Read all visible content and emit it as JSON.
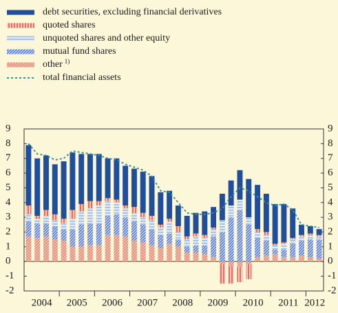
{
  "chart_data": {
    "type": "stacked_bar_line",
    "x_groups": [
      "2004",
      "2005",
      "2006",
      "2007",
      "2008",
      "2009",
      "2010",
      "2011",
      "2012"
    ],
    "categories": [
      null,
      null,
      null,
      null,
      null,
      null,
      null,
      null,
      null,
      null,
      null,
      null,
      null,
      null,
      null,
      null,
      null,
      null,
      null,
      null,
      null,
      null,
      null,
      null,
      null,
      null,
      null,
      null,
      null,
      null,
      null,
      null,
      null,
      null
    ],
    "series": [
      {
        "name": "debt securities, excluding financial derivatives",
        "color": "#1f4e9c",
        "pattern": "solid",
        "values": [
          4.1,
          3.9,
          3.7,
          3.4,
          3.9,
          3.9,
          3.4,
          3.2,
          3.2,
          2.7,
          2.8,
          2.7,
          2.6,
          2.8,
          2.7,
          2.2,
          1.9,
          1.4,
          1.4,
          1.4,
          1.6,
          1.4,
          1.8,
          1.7,
          2.0,
          2.6,
          3.0,
          2.6,
          2.7,
          2.6,
          2.0,
          0.7,
          0.5,
          0.4
        ]
      },
      {
        "name": "quoted shares",
        "color": "#d9453a",
        "pattern": "vertical",
        "values": [
          0.6,
          0.2,
          0.4,
          0.4,
          0.3,
          0.6,
          0.5,
          0.5,
          0.3,
          0.2,
          0.2,
          0.2,
          0.4,
          0.3,
          0.3,
          0.2,
          0.2,
          0.4,
          0.2,
          0.2,
          0.2,
          0.1,
          -1.3,
          -1.2,
          -1.0,
          -1.0,
          0.2,
          0.2,
          0.1,
          0.1,
          0.1,
          0.1,
          0.1,
          0.1
        ]
      },
      {
        "name": "unquoted shares and other equity",
        "color": "#8fb0de",
        "pattern": "horizontal",
        "values": [
          0.5,
          0.3,
          0.5,
          0.4,
          0.4,
          0.7,
          0.9,
          1.0,
          1.2,
          1.0,
          0.8,
          0.6,
          0.6,
          0.5,
          0.6,
          0.5,
          0.8,
          0.5,
          0.5,
          0.6,
          0.5,
          0.5,
          0.8,
          0.8,
          0.7,
          0.5,
          0.4,
          0.4,
          0.3,
          0.4,
          0.3,
          0.3,
          0.3,
          0.2
        ]
      },
      {
        "name": "mutual fund shares",
        "color": "#4f74d1",
        "pattern": "diagonal",
        "values": [
          1.0,
          1.0,
          0.9,
          0.9,
          0.8,
          1.2,
          1.5,
          1.5,
          1.5,
          1.3,
          1.4,
          1.3,
          1.3,
          1.2,
          1.1,
          0.9,
          0.7,
          0.5,
          0.4,
          0.5,
          0.6,
          1.4,
          2.0,
          3.0,
          3.5,
          2.5,
          1.3,
          1.0,
          0.3,
          0.5,
          0.9,
          1.0,
          1.2,
          1.3
        ]
      },
      {
        "name": "other",
        "name_note": "1)",
        "color": "#e0846f",
        "pattern": "diagonal",
        "values": [
          1.7,
          1.6,
          1.7,
          1.5,
          1.4,
          1.0,
          1.0,
          1.1,
          1.1,
          1.8,
          1.8,
          1.7,
          1.4,
          1.3,
          1.1,
          0.9,
          1.2,
          1.0,
          0.6,
          0.6,
          0.5,
          0.3,
          -0.2,
          -0.3,
          -0.4,
          -0.2,
          0.3,
          0.4,
          0.5,
          0.3,
          0.3,
          0.4,
          0.3,
          0.2
        ]
      }
    ],
    "line": {
      "name": "total financial assets",
      "color": "#3f8f8f",
      "values": [
        8.0,
        7.3,
        7.2,
        6.9,
        7.0,
        7.5,
        7.4,
        7.3,
        7.2,
        7.0,
        6.9,
        6.6,
        6.4,
        6.2,
        5.8,
        4.8,
        4.7,
        4.0,
        3.3,
        3.2,
        3.2,
        3.3,
        3.6,
        4.4,
        5.0,
        4.8,
        4.4,
        4.0,
        3.8,
        3.9,
        3.5,
        2.5,
        2.4,
        2.3
      ]
    },
    "ylim": [
      -2,
      9
    ],
    "yticks": [
      -2,
      -1,
      0,
      1,
      2,
      3,
      4,
      5,
      6,
      7,
      8,
      9
    ]
  }
}
